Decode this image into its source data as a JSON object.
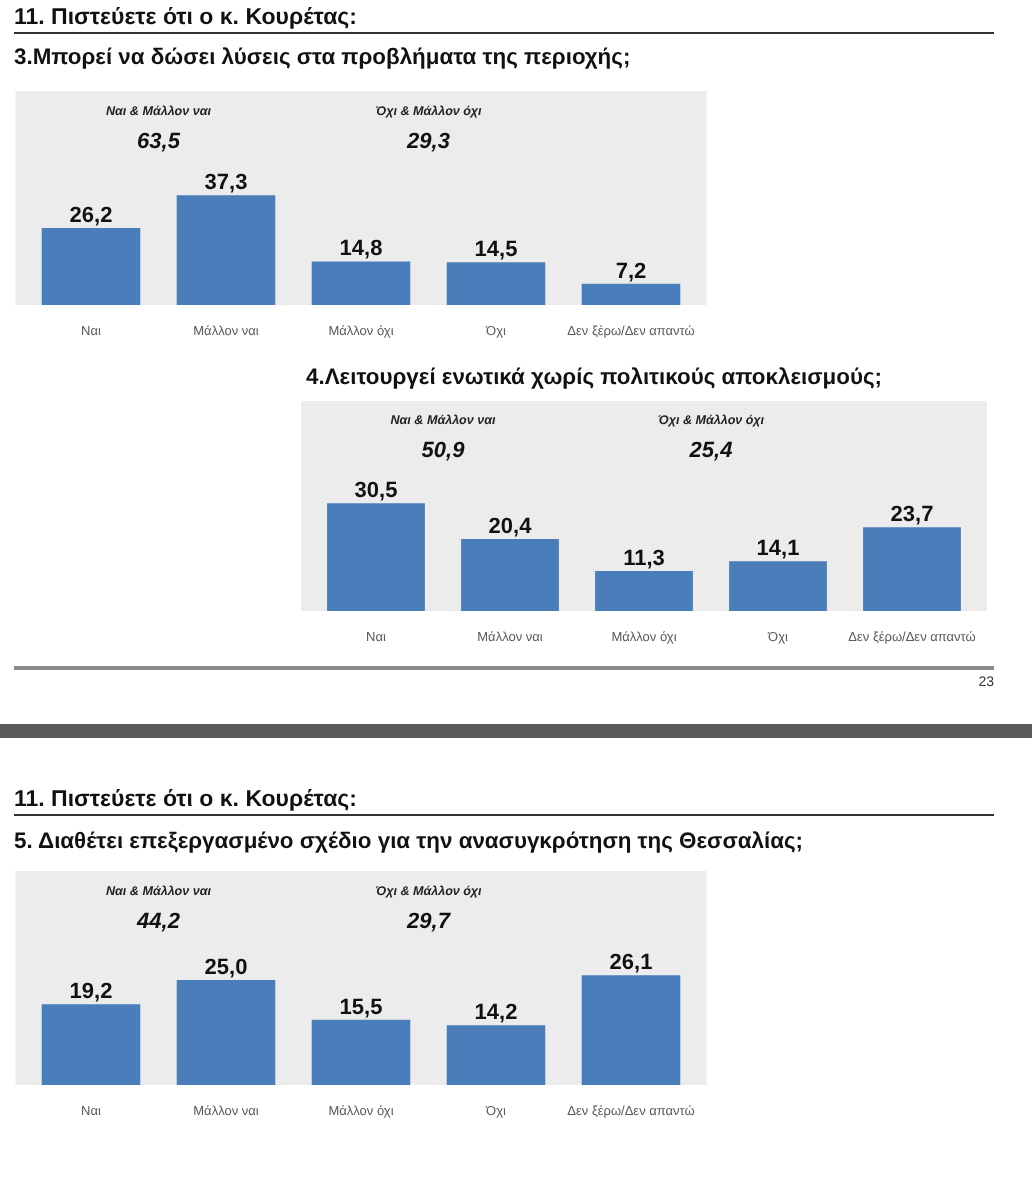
{
  "chart_data": [
    {
      "type": "bar",
      "title": "11. Πιστεύετε ότι ο κ. Κουρέτας:",
      "subtitle": "3.Μπορεί να δώσει λύσεις στα προβλήματα της περιοχής;",
      "categories": [
        "Ναι",
        "Μάλλον ναι",
        "Μάλλον όχι",
        "Όχι",
        "Δεν ξέρω/Δεν απαντώ"
      ],
      "values": [
        26.2,
        37.3,
        14.8,
        14.5,
        7.2
      ],
      "value_labels": [
        "26,2",
        "37,3",
        "14,8",
        "14,5",
        "7,2"
      ],
      "color": "#4a7ebb",
      "annotations": [
        "Ναι & Μάλλον ναι",
        "63,5",
        "Όχι & Μάλλον όχι",
        "29,3"
      ]
    },
    {
      "type": "bar",
      "title": "4.Λειτουργεί ενωτικά χωρίς πολιτικούς αποκλεισμούς;",
      "categories": [
        "Ναι",
        "Μάλλον ναι",
        "Μάλλον όχι",
        "Όχι",
        "Δεν ξέρω/Δεν απαντώ"
      ],
      "values": [
        30.5,
        20.4,
        11.3,
        14.1,
        23.7
      ],
      "value_labels": [
        "30,5",
        "20,4",
        "11,3",
        "14,1",
        "23,7"
      ],
      "color": "#4a7ebb",
      "annotations": [
        "Ναι & Μάλλον ναι",
        "50,9",
        "Όχι & Μάλλον όχι",
        "25,4",
        "23"
      ]
    },
    {
      "type": "bar",
      "title": "11. Πιστεύετε ότι ο κ. Κουρέτας:",
      "subtitle": "5. Διαθέτει επεξεργασμένο σχέδιο για την ανασυγκρότηση της Θεσσαλίας;",
      "categories": [
        "Ναι",
        "Μάλλον ναι",
        "Μάλλον όχι",
        "Όχι",
        "Δεν ξέρω/Δεν απαντώ"
      ],
      "values": [
        19.2,
        25.0,
        15.5,
        14.2,
        26.1
      ],
      "value_labels": [
        "19,2",
        "25,0",
        "15,5",
        "14,2",
        "26,1"
      ],
      "color": "#4a7ebb",
      "annotations": [
        "Ναι & Μάλλον ναι",
        "44,2",
        "Όχι & Μάλλον όχι",
        "29,7"
      ]
    }
  ]
}
